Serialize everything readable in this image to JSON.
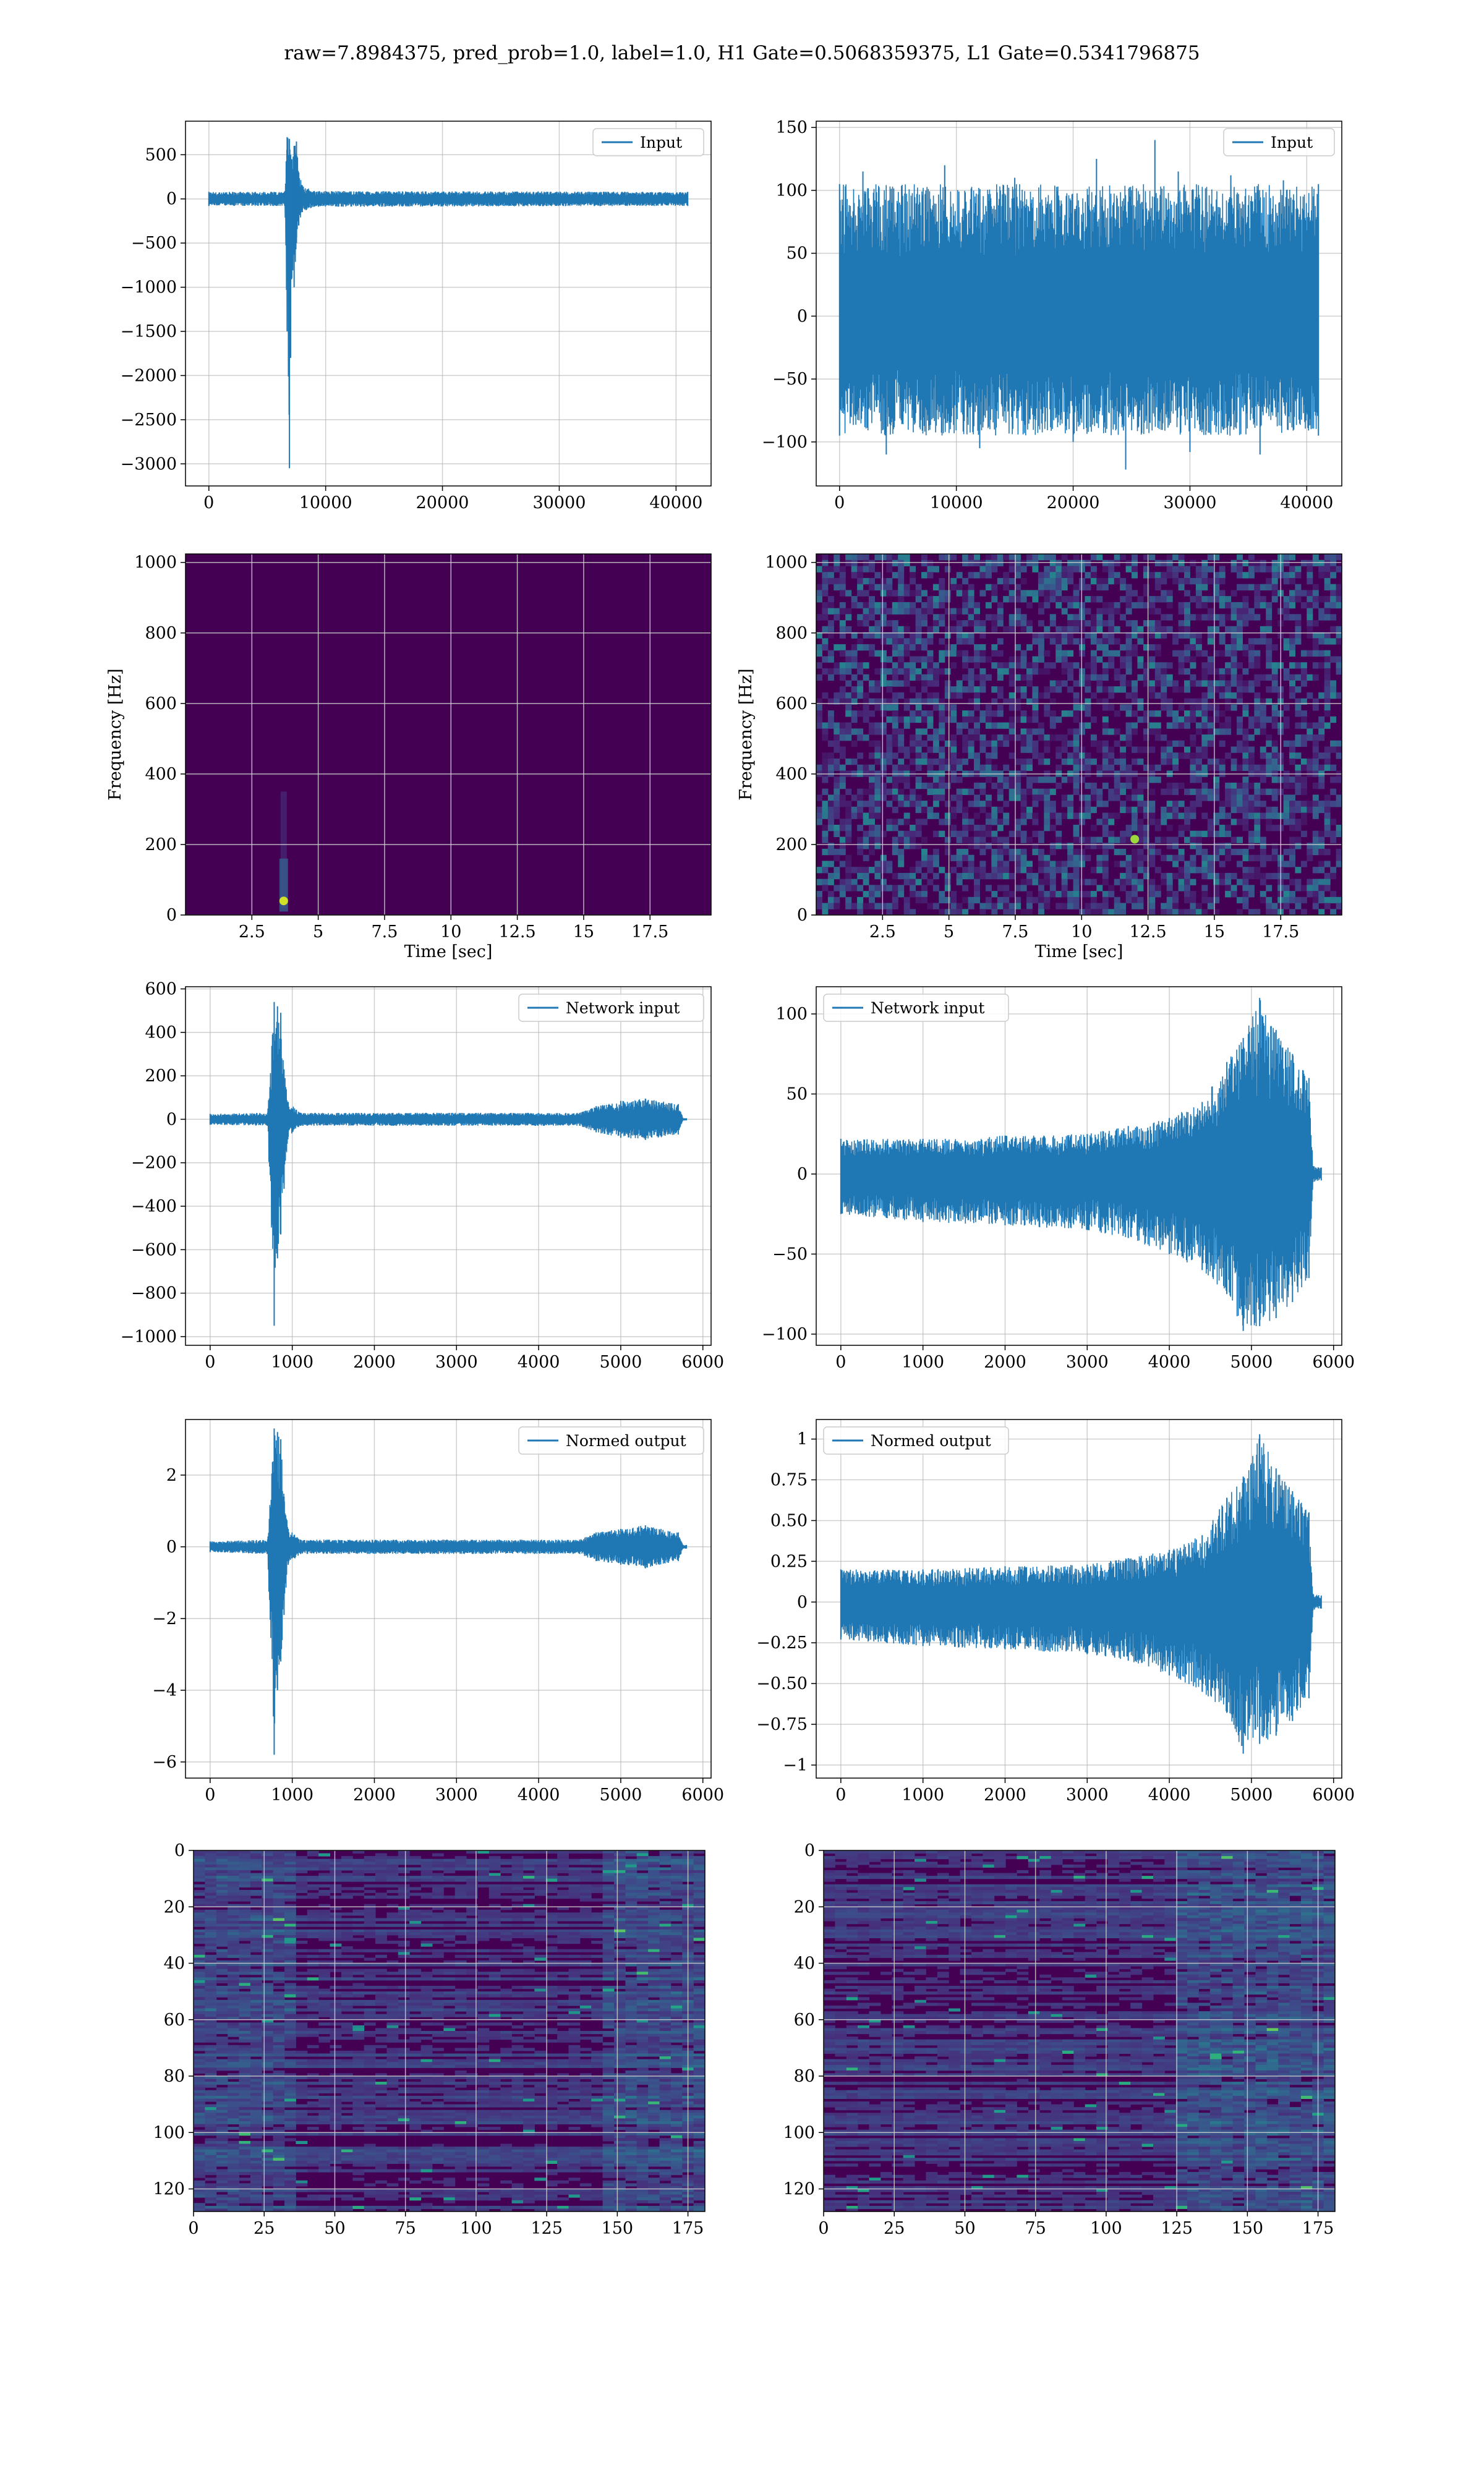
{
  "title": "raw=7.8984375, pred_prob=1.0, label=1.0, H1 Gate=0.5068359375, L1 Gate=0.5341796875",
  "colors": {
    "line": "#1f77b4",
    "viridis_dark": "#440154",
    "grid": "#b0b0b0"
  },
  "chart_data": [
    {
      "id": "input-left",
      "type": "line",
      "series": [
        {
          "name": "Input",
          "x": [
            0,
            6500,
            6700,
            6900,
            7000,
            7100,
            7300,
            7500,
            7700,
            8000,
            9000,
            41000
          ],
          "y_max": [
            80,
            80,
            700,
            680,
            500,
            450,
            600,
            650,
            300,
            150,
            90,
            80
          ],
          "y_min": [
            -80,
            -80,
            -1500,
            -3050,
            -1800,
            -900,
            -1000,
            -500,
            -300,
            -150,
            -90,
            -80
          ]
        }
      ],
      "xlim": [
        -2000,
        43000
      ],
      "ylim": [
        -3250,
        880
      ],
      "xticks": [
        0,
        10000,
        20000,
        30000,
        40000
      ],
      "yticks": [
        500,
        0,
        -500,
        -1000,
        -1500,
        -2000,
        -2500,
        -3000
      ],
      "legend": "top-right"
    },
    {
      "id": "input-right",
      "type": "line",
      "series": [
        {
          "name": "Input",
          "x": [
            0,
            41000
          ],
          "y_max": [
            105,
            105
          ],
          "y_min": [
            -95,
            -95
          ],
          "peaks_x": [
            2000,
            9000,
            15000,
            22000,
            27000,
            29000,
            33500,
            38000
          ],
          "peaks_y": [
            115,
            120,
            110,
            125,
            140,
            115,
            112,
            108
          ],
          "troughs_x": [
            4000,
            12000,
            20000,
            24500,
            30000,
            36000
          ],
          "troughs_y": [
            -110,
            -105,
            -100,
            -122,
            -108,
            -110
          ]
        }
      ],
      "xlim": [
        -2000,
        43000
      ],
      "ylim": [
        -135,
        155
      ],
      "xticks": [
        0,
        10000,
        20000,
        30000,
        40000
      ],
      "yticks": [
        150,
        100,
        50,
        0,
        -50,
        -100
      ],
      "legend": "top-right"
    },
    {
      "id": "spectrogram-left",
      "type": "heatmap",
      "xlabel": "Time [sec]",
      "ylabel": "Frequency [Hz]",
      "xlim": [
        0,
        19.8
      ],
      "ylim": [
        0,
        1024
      ],
      "xticks": [
        2.5,
        5.0,
        7.5,
        10.0,
        12.5,
        15.0,
        17.5
      ],
      "yticks": [
        0,
        200,
        400,
        600,
        800,
        1000
      ],
      "hotspot": {
        "t": 3.7,
        "f": 40
      }
    },
    {
      "id": "spectrogram-right",
      "type": "heatmap",
      "xlabel": "Time [sec]",
      "ylabel": "Frequency [Hz]",
      "xlim": [
        0,
        19.8
      ],
      "ylim": [
        0,
        1024
      ],
      "xticks": [
        2.5,
        5.0,
        7.5,
        10.0,
        12.5,
        15.0,
        17.5
      ],
      "yticks": [
        0,
        200,
        400,
        600,
        800,
        1000
      ],
      "hotspot": {
        "t": 12.0,
        "f": 215
      }
    },
    {
      "id": "network-left",
      "type": "line",
      "series": [
        {
          "name": "Network input",
          "x": [
            0,
            700,
            780,
            820,
            860,
            900,
            950,
            1100,
            4500,
            4700,
            5000,
            5300,
            5700,
            5760,
            5800
          ],
          "y_max": [
            25,
            30,
            540,
            520,
            490,
            230,
            80,
            30,
            30,
            60,
            85,
            95,
            70,
            5,
            5
          ],
          "y_min": [
            -25,
            -30,
            -950,
            -640,
            -530,
            -320,
            -80,
            -30,
            -30,
            -60,
            -85,
            -95,
            -70,
            -5,
            -5
          ]
        }
      ],
      "xlim": [
        -300,
        6100
      ],
      "ylim": [
        -1040,
        610
      ],
      "xticks": [
        0,
        1000,
        2000,
        3000,
        4000,
        5000,
        6000
      ],
      "yticks": [
        600,
        400,
        200,
        0,
        -200,
        -400,
        -600,
        -800,
        -1000
      ],
      "legend": "top-right"
    },
    {
      "id": "network-right",
      "type": "line",
      "series": [
        {
          "name": "Network input",
          "x": [
            0,
            1000,
            2000,
            3000,
            3500,
            4000,
            4400,
            4700,
            4900,
            5100,
            5300,
            5500,
            5700,
            5750,
            5850
          ],
          "y_max": [
            22,
            22,
            24,
            25,
            30,
            35,
            45,
            70,
            85,
            110,
            90,
            75,
            60,
            5,
            4
          ],
          "y_min": [
            -25,
            -30,
            -32,
            -35,
            -40,
            -50,
            -60,
            -75,
            -98,
            -95,
            -90,
            -80,
            -65,
            -5,
            -4
          ]
        }
      ],
      "xlim": [
        -300,
        6100
      ],
      "ylim": [
        -107,
        117
      ],
      "xticks": [
        0,
        1000,
        2000,
        3000,
        4000,
        5000,
        6000
      ],
      "yticks": [
        100,
        50,
        0,
        -50,
        -100
      ],
      "legend": "top-left"
    },
    {
      "id": "normed-left",
      "type": "line",
      "series": [
        {
          "name": "Normed output",
          "x": [
            0,
            700,
            780,
            820,
            860,
            900,
            950,
            1100,
            4500,
            4700,
            5000,
            5300,
            5700,
            5760,
            5800
          ],
          "y_max": [
            0.15,
            0.2,
            3.3,
            3.2,
            3.0,
            1.4,
            0.5,
            0.2,
            0.2,
            0.4,
            0.5,
            0.6,
            0.4,
            0.05,
            0.05
          ],
          "y_min": [
            -0.15,
            -0.2,
            -5.8,
            -4.0,
            -3.2,
            -1.9,
            -0.5,
            -0.2,
            -0.2,
            -0.4,
            -0.5,
            -0.6,
            -0.4,
            -0.05,
            -0.05
          ]
        }
      ],
      "xlim": [
        -300,
        6100
      ],
      "ylim": [
        -6.45,
        3.55
      ],
      "xticks": [
        0,
        1000,
        2000,
        3000,
        4000,
        5000,
        6000
      ],
      "yticks": [
        2,
        0,
        -2,
        -4,
        -6
      ],
      "legend": "top-right"
    },
    {
      "id": "normed-right",
      "type": "line",
      "series": [
        {
          "name": "Normed output",
          "x": [
            0,
            1000,
            2000,
            3000,
            3500,
            4000,
            4400,
            4700,
            4900,
            5100,
            5300,
            5500,
            5700,
            5750,
            5850
          ],
          "y_max": [
            0.2,
            0.2,
            0.22,
            0.23,
            0.27,
            0.32,
            0.41,
            0.64,
            0.77,
            1.03,
            0.82,
            0.68,
            0.55,
            0.05,
            0.04
          ],
          "y_min": [
            -0.23,
            -0.27,
            -0.29,
            -0.32,
            -0.36,
            -0.45,
            -0.55,
            -0.68,
            -0.93,
            -0.87,
            -0.82,
            -0.73,
            -0.59,
            -0.05,
            -0.04
          ]
        }
      ],
      "xlim": [
        -300,
        6100
      ],
      "ylim": [
        -1.08,
        1.12
      ],
      "xticks": [
        0,
        1000,
        2000,
        3000,
        4000,
        5000,
        6000
      ],
      "yticks": [
        1.0,
        0.75,
        0.5,
        0.25,
        0.0,
        -0.25,
        -0.5,
        -0.75,
        -1.0
      ],
      "legend": "top-left"
    },
    {
      "id": "feature-left",
      "type": "heatmap",
      "xlim": [
        0,
        181
      ],
      "ylim": [
        128,
        0
      ],
      "xticks": [
        0,
        25,
        50,
        75,
        100,
        125,
        150,
        175
      ],
      "yticks": [
        0,
        20,
        40,
        60,
        80,
        100,
        120
      ]
    },
    {
      "id": "feature-right",
      "type": "heatmap",
      "xlim": [
        0,
        181
      ],
      "ylim": [
        128,
        0
      ],
      "xticks": [
        0,
        25,
        50,
        75,
        100,
        125,
        150,
        175
      ],
      "yticks": [
        0,
        20,
        40,
        60,
        80,
        100,
        120
      ]
    }
  ]
}
